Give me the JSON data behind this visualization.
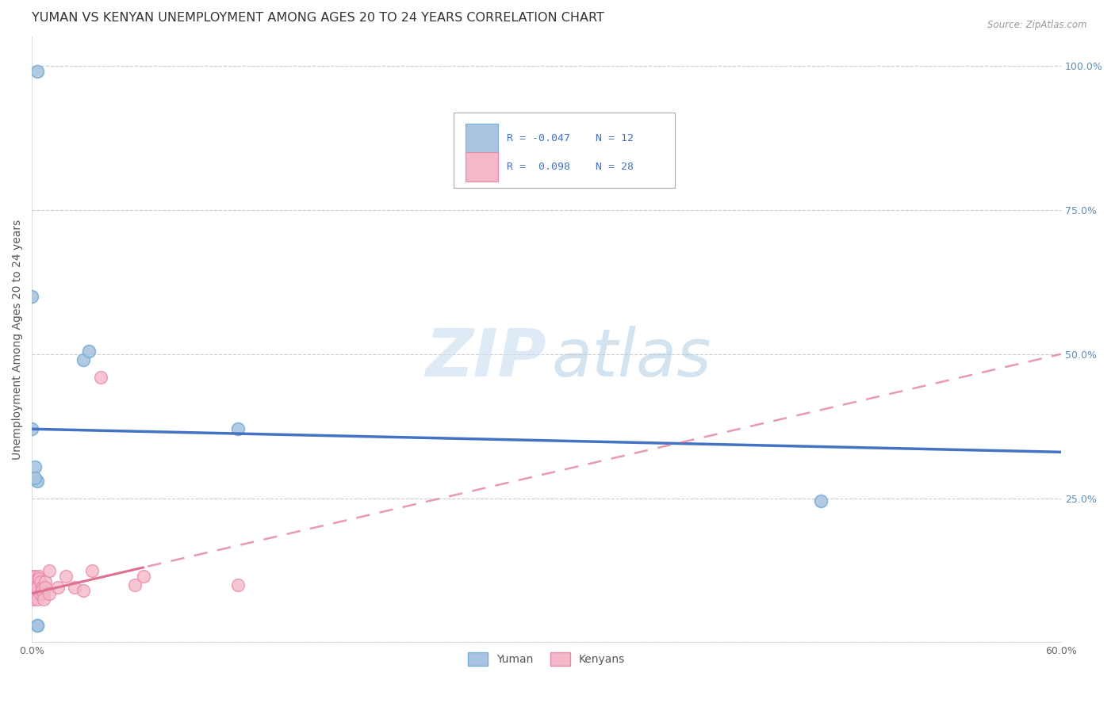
{
  "title": "YUMAN VS KENYAN UNEMPLOYMENT AMONG AGES 20 TO 24 YEARS CORRELATION CHART",
  "source": "Source: ZipAtlas.com",
  "ylabel": "Unemployment Among Ages 20 to 24 years",
  "xlim": [
    0.0,
    0.6
  ],
  "ylim": [
    0.0,
    1.05
  ],
  "xticks": [
    0.0,
    0.1,
    0.2,
    0.3,
    0.4,
    0.5,
    0.6
  ],
  "xticklabels": [
    "0.0%",
    "",
    "",
    "",
    "",
    "",
    "60.0%"
  ],
  "yticks_right": [
    0.0,
    0.25,
    0.5,
    0.75,
    1.0
  ],
  "yticklabels_right": [
    "",
    "25.0%",
    "50.0%",
    "75.0%",
    "100.0%"
  ],
  "blue_scatter_x": [
    0.003,
    0.0,
    0.03,
    0.033,
    0.002,
    0.003,
    0.12,
    0.46,
    0.002,
    0.003,
    0.003,
    0.0
  ],
  "blue_scatter_y": [
    0.99,
    0.6,
    0.49,
    0.505,
    0.305,
    0.28,
    0.37,
    0.245,
    0.285,
    0.03,
    0.03,
    0.37
  ],
  "pink_scatter_x": [
    0.0,
    0.001,
    0.001,
    0.002,
    0.002,
    0.003,
    0.003,
    0.004,
    0.004,
    0.005,
    0.005,
    0.006,
    0.006,
    0.007,
    0.007,
    0.008,
    0.008,
    0.01,
    0.01,
    0.015,
    0.02,
    0.025,
    0.03,
    0.035,
    0.04,
    0.06,
    0.065,
    0.12
  ],
  "pink_scatter_y": [
    0.115,
    0.095,
    0.075,
    0.115,
    0.085,
    0.095,
    0.075,
    0.115,
    0.11,
    0.105,
    0.085,
    0.095,
    0.09,
    0.085,
    0.075,
    0.105,
    0.095,
    0.125,
    0.085,
    0.095,
    0.115,
    0.095,
    0.09,
    0.125,
    0.46,
    0.1,
    0.115,
    0.1
  ],
  "blue_color": "#a8c4e0",
  "blue_edge_color": "#7aafd4",
  "pink_color": "#f4b8c8",
  "pink_edge_color": "#e888a8",
  "blue_line_color": "#4472c4",
  "pink_line_color": "#e07090",
  "scatter_size": 130,
  "legend_R_blue": "R = -0.047",
  "legend_N_blue": "N = 12",
  "legend_R_pink": "R =  0.098",
  "legend_N_pink": "N = 28",
  "legend_label_blue": "Yuman",
  "legend_label_pink": "Kenyans",
  "watermark_zip": "ZIP",
  "watermark_atlas": "atlas",
  "background_color": "#ffffff",
  "title_fontsize": 11.5,
  "axis_label_fontsize": 10,
  "tick_fontsize": 9,
  "blue_line_start_y": 0.37,
  "blue_line_end_y": 0.33,
  "pink_line_start_y": 0.085,
  "pink_line_end_y": 0.5
}
